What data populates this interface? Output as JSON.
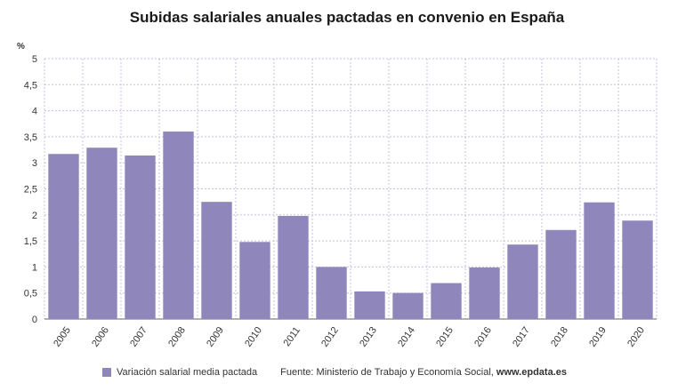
{
  "chart_data": {
    "type": "bar",
    "title": "Subidas salariales anuales pactadas en convenio en España",
    "ylabel": "%",
    "xlabel": "",
    "ylim": [
      0,
      5
    ],
    "yticks": [
      0,
      0.5,
      1,
      1.5,
      2,
      2.5,
      3,
      3.5,
      4,
      4.5,
      5
    ],
    "ytick_labels": [
      "0",
      "0,5",
      "1",
      "1,5",
      "2",
      "2,5",
      "3",
      "3,5",
      "4",
      "4,5",
      "5"
    ],
    "grid": true,
    "categories": [
      "2005",
      "2006",
      "2007",
      "2008",
      "2009",
      "2010",
      "2011",
      "2012",
      "2013",
      "2014",
      "2015",
      "2016",
      "2017",
      "2018",
      "2019",
      "2020"
    ],
    "series": [
      {
        "name": "Variación salarial media pactada",
        "color": "#8f87bb",
        "values": [
          3.17,
          3.29,
          3.14,
          3.6,
          2.25,
          1.48,
          1.98,
          1.0,
          0.53,
          0.5,
          0.69,
          0.99,
          1.43,
          1.71,
          2.24,
          1.89
        ]
      }
    ],
    "legend_position": "bottom-left"
  },
  "footer": {
    "legend_label": "Variación salarial media pactada",
    "source_prefix": "Fuente: Ministerio de Trabajo y Economía Social,",
    "source_site": "www.epdata.es"
  },
  "colors": {
    "bar": "#8f87bb",
    "grid": "#cdbfe0",
    "axis": "#666666"
  }
}
